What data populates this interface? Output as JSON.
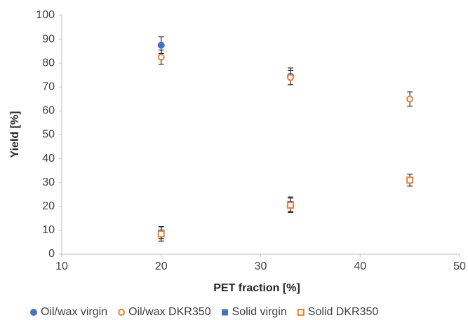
{
  "chart_data": {
    "type": "scatter",
    "x_label": "PET fraction [%]",
    "y_label": "Yield [%]",
    "xlim": [
      10,
      50
    ],
    "xticks": [
      10,
      20,
      30,
      40,
      50
    ],
    "ylim": [
      0,
      100
    ],
    "yticks": [
      0,
      10,
      20,
      30,
      40,
      50,
      60,
      70,
      80,
      90,
      100
    ],
    "legend": "bottom",
    "series": [
      {
        "name": "Oil/wax virgin",
        "color": "#4472c4",
        "marker": "circle-filled",
        "x": [
          20,
          33
        ],
        "values": [
          87.5,
          74.5
        ],
        "errors": [
          3.5,
          3.5
        ]
      },
      {
        "name": "Oil/wax DKR350",
        "color": "#ed7d31",
        "marker": "circle-open",
        "x": [
          20,
          33,
          45
        ],
        "values": [
          82.5,
          74,
          65
        ],
        "errors": [
          3,
          3,
          3
        ]
      },
      {
        "name": "Solid virgin",
        "color": "#4472c4",
        "marker": "square-filled",
        "x": [
          20,
          33
        ],
        "values": [
          9,
          21
        ],
        "errors": [
          2.5,
          3
        ]
      },
      {
        "name": "Solid DKR350",
        "color": "#ed7d31",
        "marker": "square-open",
        "x": [
          20,
          33,
          45
        ],
        "values": [
          8.5,
          20.5,
          31
        ],
        "errors": [
          3,
          3,
          2.5
        ]
      }
    ]
  }
}
